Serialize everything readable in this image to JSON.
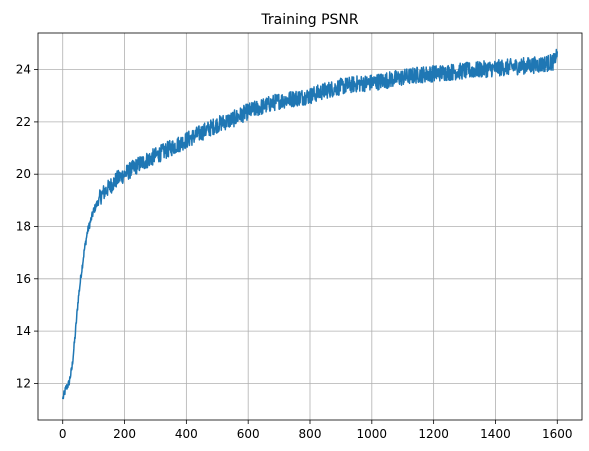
{
  "chart_data": {
    "type": "line",
    "title": "Training PSNR",
    "xlabel": "",
    "ylabel": "",
    "xlim": [
      -80,
      1680
    ],
    "ylim": [
      10.6,
      25.4
    ],
    "xticks": [
      0,
      200,
      400,
      600,
      800,
      1000,
      1200,
      1400,
      1600
    ],
    "yticks": [
      12,
      14,
      16,
      18,
      20,
      22,
      24
    ],
    "grid": true,
    "legend": "none",
    "series": [
      {
        "color": "#1f77b4",
        "x": [
          0,
          10,
          20,
          30,
          40,
          50,
          60,
          70,
          80,
          90,
          100,
          125,
          150,
          175,
          200,
          250,
          300,
          350,
          400,
          450,
          500,
          550,
          600,
          650,
          700,
          750,
          800,
          850,
          900,
          950,
          1000,
          1050,
          1100,
          1150,
          1200,
          1250,
          1300,
          1350,
          1400,
          1450,
          1500,
          1550,
          1590,
          1600
        ],
        "y": [
          11.4,
          11.8,
          12.0,
          12.6,
          13.8,
          15.2,
          16.2,
          17.1,
          17.8,
          18.2,
          18.6,
          19.2,
          19.5,
          19.8,
          20.0,
          20.4,
          20.7,
          21.0,
          21.3,
          21.6,
          21.9,
          22.1,
          22.4,
          22.6,
          22.8,
          22.9,
          23.0,
          23.2,
          23.35,
          23.45,
          23.5,
          23.6,
          23.7,
          23.8,
          23.85,
          23.9,
          23.95,
          24.0,
          24.05,
          24.1,
          24.15,
          24.2,
          24.3,
          24.7
        ]
      }
    ]
  }
}
